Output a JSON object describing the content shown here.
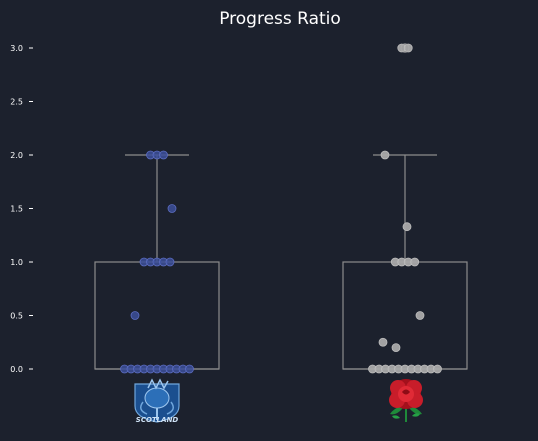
{
  "chart_data": {
    "type": "box",
    "title": "Progress Ratio",
    "xlabel": "",
    "ylabel": "",
    "ylim": [
      0,
      3
    ],
    "yticks": [
      {
        "value": 0.0,
        "label": "0.0"
      },
      {
        "value": 0.5,
        "label": "0.5"
      },
      {
        "value": 1.0,
        "label": "1.0"
      },
      {
        "value": 1.5,
        "label": "1.5"
      },
      {
        "value": 2.0,
        "label": "2.0"
      },
      {
        "value": 2.5,
        "label": "2.5"
      },
      {
        "value": 3.0,
        "label": "3.0"
      }
    ],
    "grid": false,
    "legend": "none",
    "series": [
      {
        "category_icon": "scotland-thistle-logo",
        "logo_text": "SCOTLAND",
        "color": "#3c4f9a",
        "box": {
          "q1": 0,
          "median": 0,
          "q3": 1,
          "whisker_low": 0,
          "whisker_high": 2
        },
        "outliers": [],
        "points": [
          0,
          0,
          0,
          0,
          0,
          0,
          0,
          0,
          0,
          0,
          0,
          0.5,
          1,
          1,
          1,
          1,
          1,
          1.5,
          2,
          2,
          2
        ]
      },
      {
        "category_icon": "england-red-rose-logo",
        "logo_text": "",
        "color": "#a9a9a9",
        "box": {
          "q1": 0,
          "median": 0,
          "q3": 1,
          "whisker_low": 0,
          "whisker_high": 2
        },
        "outliers": [
          3
        ],
        "points": [
          0,
          0,
          0,
          0,
          0,
          0,
          0,
          0,
          0,
          0,
          0,
          0.2,
          0.25,
          0.5,
          1,
          1,
          1,
          1,
          1.33,
          2,
          3,
          3
        ]
      }
    ]
  }
}
